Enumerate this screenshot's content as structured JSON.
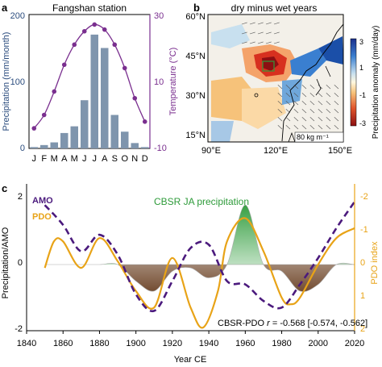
{
  "chart_data": [
    {
      "panel": "a",
      "type": "bar",
      "title": "Fangshan station",
      "categories": [
        "J",
        "F",
        "M",
        "A",
        "M",
        "J",
        "J",
        "A",
        "S",
        "O",
        "N",
        "D"
      ],
      "series": [
        {
          "name": "Precipitation",
          "kind": "bar",
          "axis": "left",
          "color": "#7f95ad",
          "values": [
            2,
            5,
            9,
            23,
            33,
            72,
            170,
            150,
            50,
            25,
            8,
            2
          ]
        },
        {
          "name": "Temperature",
          "kind": "line",
          "axis": "right",
          "color": "#7a2f8f",
          "values": [
            -4,
            0,
            7,
            15,
            21,
            25,
            27,
            25.5,
            21,
            14,
            5,
            -2
          ]
        }
      ],
      "ylabel_left": "Precipitation (mm/month)",
      "ylim_left": [
        0,
        200
      ],
      "yticks_left": [
        "0",
        "100",
        "200"
      ],
      "ylabel_right": "Temperature (°C)",
      "ylim_right": [
        -10,
        30
      ],
      "yticks_right": [
        "-10",
        "10",
        "30"
      ]
    },
    {
      "panel": "b",
      "type": "heatmap",
      "title": "dry minus wet years",
      "x_ticks": [
        "90°E",
        "120°E",
        "150°E"
      ],
      "y_ticks": [
        "15°N",
        "30°N",
        "45°N",
        "60°N"
      ],
      "colorbar_label": "Precipitation anomaly (mm/day)",
      "colorbar_ticks": [
        "3",
        "1",
        "-1",
        "-3"
      ],
      "colorbar_range": [
        -3,
        3
      ],
      "vector_key": "80 kg m⁻¹"
    },
    {
      "panel": "c",
      "type": "line",
      "xlabel": "Year CE",
      "x_ticks": [
        "1840",
        "1860",
        "1880",
        "1900",
        "1920",
        "1940",
        "1960",
        "1980",
        "2000",
        "2020"
      ],
      "xlim": [
        1840,
        2020
      ],
      "ylabel_left": "Precipitation/AMO",
      "ylim_left": [
        -2,
        2
      ],
      "yticks_left": [
        "-2",
        "0",
        "2"
      ],
      "ylabel_right": "PDO index",
      "ylim_right": [
        2,
        -2
      ],
      "yticks_right": [
        "-2",
        "-1",
        "0",
        "1",
        "2"
      ],
      "legend": [
        "AMO",
        "PDO"
      ],
      "annotations": [
        "CBSR JA precipitation"
      ],
      "correlation": {
        "prefix": "CBSR-PDO ",
        "r_symbol": "r",
        "value": " = -0.568 [-0.574, -0.562]"
      },
      "series": [
        {
          "name": "AMO",
          "axis": "left",
          "style": "dashed",
          "color": "#4b1a7d",
          "x": [
            1850,
            1860,
            1870,
            1880,
            1890,
            1900,
            1910,
            1920,
            1930,
            1940,
            1950,
            1960,
            1970,
            1980,
            1990,
            2000,
            2010,
            2020
          ],
          "y": [
            1.8,
            1.2,
            0.4,
            0.9,
            0.3,
            -0.9,
            -1.4,
            -0.5,
            0.5,
            0.6,
            -0.5,
            -0.6,
            -1.1,
            -1.3,
            -0.6,
            0.2,
            1.1,
            1.9
          ]
        },
        {
          "name": "PDO",
          "axis": "right",
          "color": "#e8a317",
          "x": [
            1850,
            1855,
            1860,
            1870,
            1880,
            1890,
            1900,
            1910,
            1920,
            1930,
            1937,
            1945,
            1950,
            1960,
            1970,
            1980,
            1985,
            1990,
            2000,
            2010,
            2020
          ],
          "y": [
            0.1,
            -0.7,
            -0.7,
            0.1,
            -0.8,
            -0.1,
            0.8,
            1.3,
            -0.2,
            1.3,
            1.9,
            0.8,
            -0.7,
            -1.4,
            -0.4,
            1.0,
            1.2,
            1.0,
            0.0,
            -0.8,
            -1.1
          ]
        },
        {
          "name": "CBSR JA precipitation",
          "axis": "left",
          "style": "filled",
          "x": [
            1850,
            1860,
            1870,
            1880,
            1890,
            1900,
            1910,
            1920,
            1930,
            1940,
            1950,
            1960,
            1970,
            1980,
            1990,
            2000,
            2010,
            2020
          ],
          "y": [
            0,
            0,
            0,
            0,
            0,
            -0.5,
            -0.8,
            -0.2,
            -0.1,
            -0.4,
            0,
            1.8,
            0,
            -0.2,
            -0.8,
            -0.6,
            0,
            0
          ]
        }
      ]
    }
  ],
  "panel_labels": [
    "a",
    "b",
    "c"
  ],
  "colors": {
    "amo": "#4b1a7d",
    "pdo": "#e8a317",
    "bars": "#7f95ad",
    "temp": "#7a2f8f",
    "wet": "#4cae4c",
    "dry": "#7b5233"
  }
}
